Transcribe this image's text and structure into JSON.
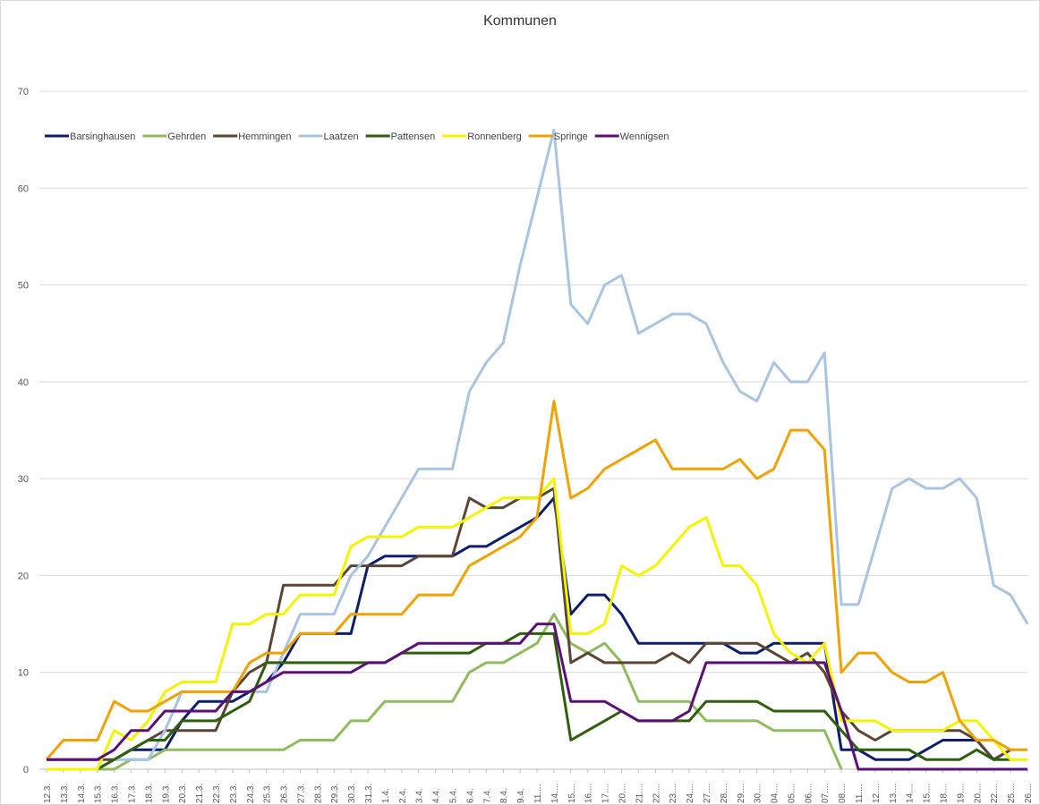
{
  "chart_data": {
    "type": "line",
    "title": "Kommunen",
    "xlabel": "",
    "ylabel": "",
    "ylim": [
      0,
      70
    ],
    "yticks": [
      0,
      10,
      20,
      30,
      40,
      50,
      60,
      70
    ],
    "grid": true,
    "legend_position": "top-left",
    "categories": [
      "12.3.",
      "13.3.",
      "14.3.",
      "15.3.",
      "16.3.",
      "17.3.",
      "18.3.",
      "19.3.",
      "20.3.",
      "21.3.",
      "22.3.",
      "23.3.",
      "24.3.",
      "25.3.",
      "26.3.",
      "27.3.",
      "28.3.",
      "29.3.",
      "30.3.",
      "31.3.",
      "1.4.",
      "2.4.",
      "3.4.",
      "4.4.",
      "5.4.",
      "6.4.",
      "7.4.",
      "8.4.",
      "9.4.",
      "11....",
      "14....",
      "15....",
      "16....",
      "17....",
      "20....",
      "21....",
      "22....",
      "23....",
      "24....",
      "27....",
      "28....",
      "29....",
      "30....",
      "04....",
      "05....",
      "06....",
      "07....",
      "08....",
      "11....",
      "12....",
      "13....",
      "14....",
      "15....",
      "18....",
      "19....",
      "20....",
      "22....",
      "25....",
      "26...."
    ],
    "series": [
      {
        "name": "Barsinghausen",
        "color": "#0d1f6b",
        "values": [
          0,
          0,
          0,
          0,
          1,
          2,
          2,
          2,
          5,
          7,
          7,
          7,
          8,
          9,
          11,
          14,
          14,
          14,
          14,
          21,
          22,
          22,
          22,
          22,
          22,
          23,
          23,
          24,
          25,
          26,
          28,
          16,
          18,
          18,
          16,
          13,
          13,
          13,
          13,
          13,
          13,
          12,
          12,
          13,
          13,
          13,
          13,
          2,
          2,
          1,
          1,
          1,
          2,
          3,
          3,
          3,
          1,
          2,
          null
        ]
      },
      {
        "name": "Gehrden",
        "color": "#8fbc5e",
        "values": [
          0,
          0,
          0,
          0,
          0,
          1,
          1,
          2,
          2,
          2,
          2,
          2,
          2,
          2,
          2,
          3,
          3,
          3,
          5,
          5,
          7,
          7,
          7,
          7,
          7,
          10,
          11,
          11,
          12,
          13,
          16,
          13,
          12,
          13,
          11,
          7,
          7,
          7,
          7,
          5,
          5,
          5,
          5,
          4,
          4,
          4,
          4,
          0,
          null,
          null,
          null,
          null,
          null,
          null,
          null,
          null,
          null,
          null,
          null
        ]
      },
      {
        "name": "Hemmingen",
        "color": "#5b4636",
        "values": [
          1,
          1,
          1,
          1,
          1,
          2,
          3,
          4,
          4,
          4,
          4,
          8,
          10,
          11,
          19,
          19,
          19,
          19,
          21,
          21,
          21,
          21,
          22,
          22,
          22,
          28,
          27,
          27,
          28,
          28,
          29,
          11,
          12,
          11,
          11,
          11,
          11,
          12,
          11,
          13,
          13,
          13,
          13,
          12,
          11,
          12,
          10,
          6,
          4,
          3,
          4,
          4,
          4,
          4,
          4,
          3,
          1,
          2,
          null
        ]
      },
      {
        "name": "Laatzen",
        "color": "#a9c4e2",
        "values": [
          0,
          0,
          0,
          0,
          1,
          1,
          1,
          4,
          8,
          8,
          8,
          8,
          8,
          8,
          12,
          16,
          16,
          16,
          20,
          22,
          25,
          28,
          31,
          31,
          31,
          39,
          42,
          44,
          52,
          59,
          66,
          48,
          46,
          50,
          51,
          45,
          46,
          47,
          47,
          46,
          42,
          39,
          38,
          42,
          40,
          40,
          43,
          17,
          17,
          23,
          29,
          30,
          29,
          29,
          30,
          28,
          19,
          18,
          15
        ]
      },
      {
        "name": "Pattensen",
        "color": "#2e5f0c",
        "values": [
          0,
          0,
          0,
          0,
          1,
          2,
          3,
          3,
          5,
          5,
          5,
          6,
          7,
          11,
          11,
          11,
          11,
          11,
          11,
          11,
          11,
          12,
          12,
          12,
          12,
          12,
          13,
          13,
          14,
          14,
          14,
          3,
          4,
          5,
          6,
          5,
          5,
          5,
          5,
          7,
          7,
          7,
          7,
          6,
          6,
          6,
          6,
          4,
          2,
          2,
          2,
          2,
          1,
          1,
          1,
          2,
          1,
          1,
          null
        ]
      },
      {
        "name": "Ronnenberg",
        "color": "#f4f400",
        "values": [
          0,
          0,
          0,
          0,
          4,
          3,
          5,
          8,
          9,
          9,
          9,
          15,
          15,
          16,
          16,
          18,
          18,
          18,
          23,
          24,
          24,
          24,
          25,
          25,
          25,
          26,
          27,
          28,
          28,
          28,
          30,
          14,
          14,
          15,
          21,
          20,
          21,
          23,
          25,
          26,
          21,
          21,
          19,
          14,
          12,
          11,
          13,
          5,
          5,
          5,
          4,
          4,
          4,
          4,
          5,
          5,
          3,
          1,
          1
        ]
      },
      {
        "name": "Springe",
        "color": "#f0a202",
        "values": [
          1,
          3,
          3,
          3,
          7,
          6,
          6,
          7,
          8,
          8,
          8,
          8,
          11,
          12,
          12,
          14,
          14,
          14,
          16,
          16,
          16,
          16,
          18,
          18,
          18,
          21,
          22,
          23,
          24,
          26,
          38,
          28,
          29,
          31,
          32,
          33,
          34,
          31,
          31,
          31,
          31,
          32,
          30,
          31,
          35,
          35,
          33,
          10,
          12,
          12,
          10,
          9,
          9,
          10,
          5,
          3,
          3,
          2,
          2
        ]
      },
      {
        "name": "Wennigsen",
        "color": "#5b1078",
        "values": [
          1,
          1,
          1,
          1,
          2,
          4,
          4,
          6,
          6,
          6,
          6,
          8,
          8,
          9,
          10,
          10,
          10,
          10,
          10,
          11,
          11,
          12,
          13,
          13,
          13,
          13,
          13,
          13,
          13,
          15,
          15,
          7,
          7,
          7,
          6,
          5,
          5,
          5,
          6,
          11,
          11,
          11,
          11,
          11,
          11,
          11,
          11,
          6,
          0,
          0,
          0,
          0,
          0,
          0,
          0,
          0,
          0,
          0,
          0
        ]
      }
    ]
  }
}
